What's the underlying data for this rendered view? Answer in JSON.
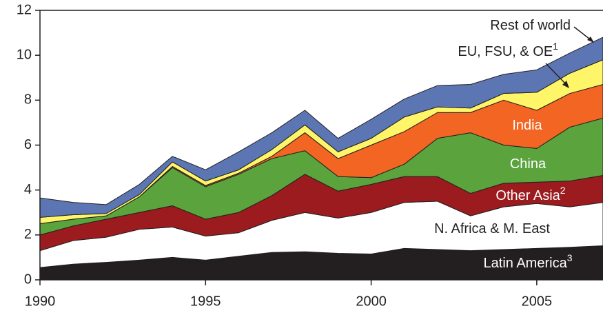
{
  "chart_data": {
    "type": "stacked_area",
    "x": [
      1990,
      1991,
      1992,
      1993,
      1994,
      1995,
      1996,
      1997,
      1998,
      1999,
      2000,
      2001,
      2002,
      2003,
      2004,
      2005,
      2006,
      2007
    ],
    "series": [
      {
        "name": "Latin America",
        "note": "3",
        "color": "#231f20",
        "values": [
          0.55,
          0.7,
          0.78,
          0.88,
          1.0,
          0.88,
          1.05,
          1.22,
          1.25,
          1.18,
          1.15,
          1.4,
          1.35,
          1.3,
          1.35,
          1.4,
          1.45,
          1.52
        ]
      },
      {
        "name": "N. Africa & M. East",
        "color": "#ffffff",
        "values": [
          0.75,
          1.05,
          1.12,
          1.37,
          1.35,
          1.07,
          1.05,
          1.43,
          1.75,
          1.57,
          1.85,
          2.05,
          2.15,
          1.55,
          1.9,
          2.0,
          1.8,
          1.93
        ]
      },
      {
        "name": "Other Asia",
        "note": "2",
        "color": "#9b1b1f",
        "values": [
          0.7,
          0.65,
          0.8,
          0.75,
          0.95,
          0.75,
          0.9,
          1.1,
          1.7,
          1.2,
          1.25,
          1.15,
          1.1,
          1.0,
          1.05,
          0.95,
          1.15,
          1.2
        ]
      },
      {
        "name": "China",
        "color": "#5aa33d",
        "values": [
          0.5,
          0.3,
          0.15,
          0.7,
          1.7,
          1.45,
          1.7,
          1.65,
          1.05,
          0.65,
          0.3,
          0.55,
          1.7,
          2.7,
          1.7,
          1.5,
          2.4,
          2.55
        ]
      },
      {
        "name": "India",
        "color": "#f26522",
        "values": [
          0,
          0,
          0,
          0,
          0.05,
          0.05,
          0.05,
          0.1,
          0.8,
          0.8,
          1.45,
          1.45,
          1.15,
          0.9,
          2.0,
          1.7,
          1.5,
          1.5
        ]
      },
      {
        "name": "EU, FSU, & OE",
        "note": "1",
        "color": "#fff568",
        "values": [
          0.28,
          0.2,
          0.1,
          0.1,
          0.2,
          0.2,
          0.15,
          0.3,
          0.35,
          0.3,
          0.3,
          0.65,
          0.25,
          0.2,
          0.3,
          0.8,
          0.9,
          1.1
        ]
      },
      {
        "name": "Rest of world",
        "color": "#5b76b3",
        "values": [
          0.87,
          0.55,
          0.4,
          0.45,
          0.25,
          0.5,
          0.8,
          0.75,
          0.65,
          0.6,
          0.85,
          0.8,
          0.95,
          1.05,
          0.85,
          1.0,
          0.9,
          1.0
        ]
      }
    ],
    "xlim": [
      1990,
      2007
    ],
    "xticks": [
      1990,
      1995,
      2000,
      2005
    ],
    "ylim": [
      0,
      12
    ],
    "yticks": [
      0,
      2,
      4,
      6,
      8,
      10,
      12
    ]
  }
}
